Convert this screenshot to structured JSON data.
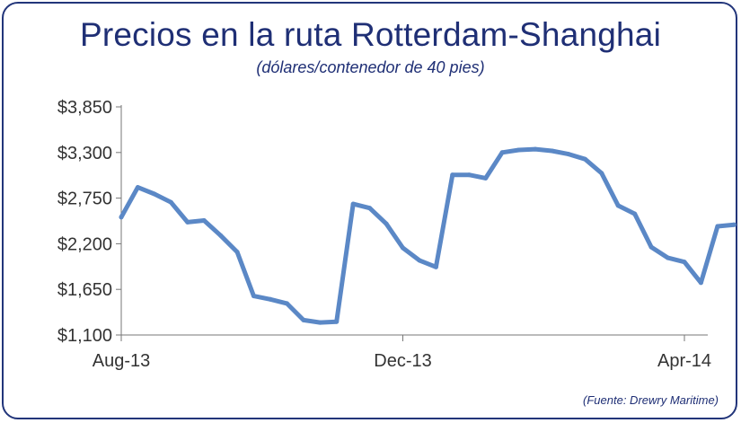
{
  "header": {
    "title": "Precios en la ruta Rotterdam-Shanghai",
    "subtitle": "(dólares/contenedor de 40 pies)"
  },
  "footer": {
    "source": "(Fuente: Drewry Maritime)"
  },
  "chart_data": {
    "type": "line",
    "title": "Precios en la ruta Rotterdam-Shanghai",
    "subtitle": "(dólares/contenedor de 40 pies)",
    "source": "(Fuente: Drewry Maritime)",
    "xlabel": "",
    "ylabel": "",
    "ylim": [
      1100,
      3850
    ],
    "yticks": [
      1100,
      1650,
      2200,
      2750,
      3300,
      3850
    ],
    "ytick_labels": [
      "$1,100",
      "$1,650",
      "$2,200",
      "$2,750",
      "$3,300",
      "$3,850"
    ],
    "xticks": [
      "Aug-13",
      "Dec-13",
      "Apr-14"
    ],
    "xtick_indices": [
      0,
      17,
      34
    ],
    "grid": false,
    "legend": "none",
    "colors": {
      "line": "#5b88c6",
      "axis": "#777777",
      "text": "#1f2f75"
    },
    "series": [
      {
        "values": [
          2520,
          2880,
          2800,
          2700,
          2460,
          2480,
          2300,
          2100,
          1570,
          1530,
          1480,
          1280,
          1250,
          1260,
          2680,
          2630,
          2440,
          2150,
          2000,
          1920,
          3030,
          3030,
          2990,
          3300,
          3330,
          3340,
          3320,
          3280,
          3220,
          3050,
          2660,
          2560,
          2160,
          2030,
          1980,
          1730,
          2410,
          2430
        ]
      }
    ]
  }
}
